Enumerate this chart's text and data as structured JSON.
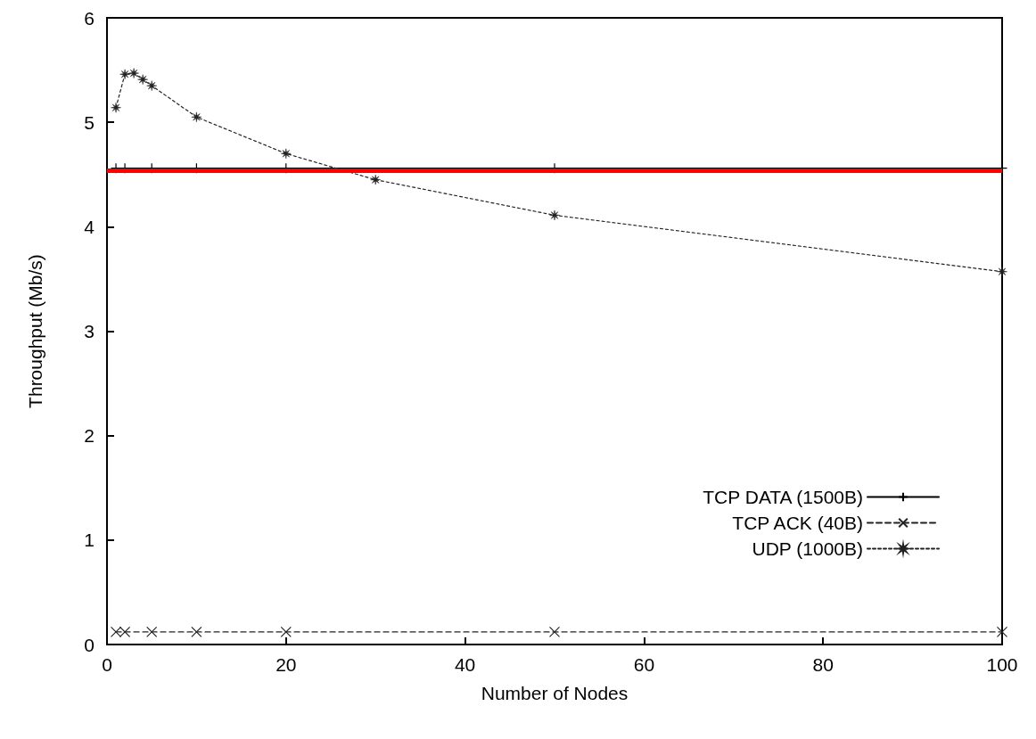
{
  "chart_data": {
    "type": "line",
    "xlabel": "Number of Nodes",
    "ylabel": "Throughput (Mb/s)",
    "xlim": [
      0,
      100
    ],
    "xticks": [
      0,
      20,
      40,
      60,
      80,
      100
    ],
    "ylim": [
      0,
      6
    ],
    "yticks": [
      0,
      1,
      2,
      3,
      4,
      5,
      6
    ],
    "grid": false,
    "legend": "bottom right",
    "series": [
      {
        "name": "TCP DATA (1500B)",
        "color": "#000000",
        "line_style": "solid",
        "marker": "plus",
        "x": [
          1,
          2,
          5,
          10,
          20,
          50,
          100
        ],
        "values": [
          4.56,
          4.56,
          4.56,
          4.56,
          4.56,
          4.56,
          4.56
        ]
      },
      {
        "name": "TCP ACK (40B)",
        "color": "#222222",
        "line_style": "dashed",
        "marker": "cross",
        "x": [
          1,
          2,
          5,
          10,
          20,
          50,
          100
        ],
        "values": [
          0.12,
          0.12,
          0.12,
          0.12,
          0.12,
          0.12,
          0.12
        ]
      },
      {
        "name": "UDP (1000B)",
        "color": "#222222",
        "line_style": "dotted",
        "marker": "star",
        "x": [
          1,
          2,
          3,
          4,
          5,
          10,
          20,
          30,
          50,
          100
        ],
        "values": [
          5.14,
          5.46,
          5.47,
          5.41,
          5.35,
          5.05,
          4.7,
          4.45,
          4.11,
          3.57
        ]
      }
    ],
    "ref_lines": [
      {
        "axis": "y",
        "value": 4.54,
        "label": null,
        "color": "#ff0000"
      }
    ]
  }
}
